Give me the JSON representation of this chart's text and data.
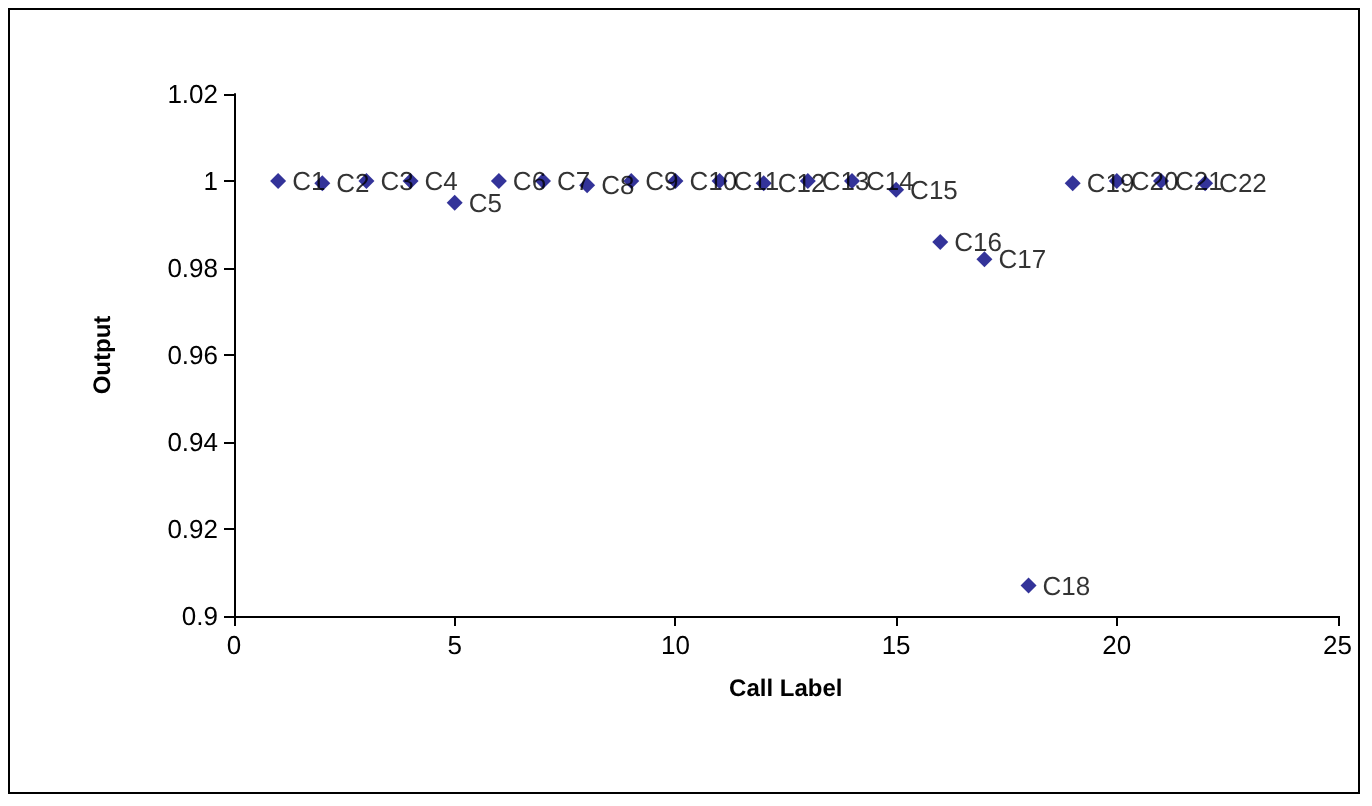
{
  "chart_data": {
    "type": "scatter",
    "xlabel": "Call Label",
    "ylabel": "Output",
    "x": [
      1,
      2,
      3,
      4,
      5,
      6,
      7,
      8,
      9,
      10,
      11,
      12,
      13,
      14,
      15,
      16,
      17,
      18,
      19,
      20,
      21,
      22
    ],
    "series": [
      {
        "color": "#000080",
        "values": [
          1.0,
          0.9995,
          1.0,
          1.0,
          0.995,
          1.0,
          1.0,
          0.999,
          1.0,
          1.0,
          1.0,
          0.9995,
          1.0,
          1.0,
          0.998,
          0.986,
          0.982,
          0.907,
          0.9995,
          1.0,
          1.0,
          0.9995
        ],
        "value_labels": [
          "C1",
          "C2",
          "C3",
          "C4",
          "C5",
          "C6",
          "C7",
          "C8",
          "C9",
          "C10",
          "C11",
          "C12",
          "C13",
          "C14",
          "C15",
          "C16",
          "C17",
          "C18",
          "C19",
          "C20",
          "C21",
          "C22"
        ]
      }
    ],
    "xlim": [
      0,
      25
    ],
    "xticks": [
      0,
      5,
      10,
      15,
      20,
      25
    ],
    "ylim": [
      0.9,
      1.02
    ],
    "yticks": [
      0.9,
      0.92,
      0.94,
      0.96,
      0.98,
      1,
      1.02
    ],
    "grid": false,
    "marker": "diamond"
  }
}
